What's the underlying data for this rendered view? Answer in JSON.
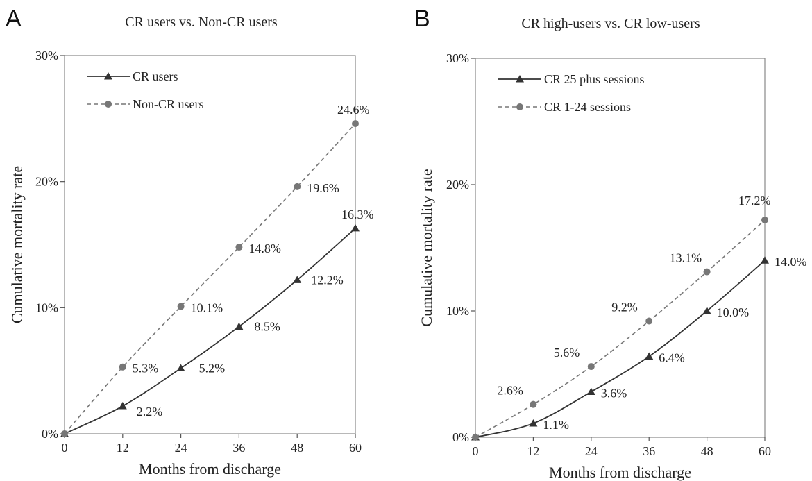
{
  "chart_data": [
    {
      "type": "line",
      "panel": "A",
      "title": "CR users vs. Non-CR users",
      "xlabel": "Months from discharge",
      "ylabel": "Cumulative mortality rate",
      "xlim": [
        0,
        60
      ],
      "ylim": [
        0,
        30
      ],
      "x_ticks": [
        "0",
        "12",
        "24",
        "36",
        "48",
        "60"
      ],
      "y_ticks": [
        "0%",
        "10%",
        "20%",
        "30%"
      ],
      "legend_position": "top-left",
      "grid": false,
      "x": [
        0,
        12,
        24,
        36,
        48,
        60
      ],
      "series": [
        {
          "name": "CR users",
          "style": "solid",
          "marker": "triangle",
          "color": "#333333",
          "values": [
            0,
            2.2,
            5.2,
            8.5,
            12.2,
            16.3
          ],
          "labels": [
            "",
            "2.2%",
            "5.2%",
            "8.5%",
            "12.2%",
            "16.3%"
          ]
        },
        {
          "name": "Non-CR users",
          "style": "dashed",
          "marker": "circle",
          "color": "#777777",
          "values": [
            0,
            5.3,
            10.1,
            14.8,
            19.6,
            24.6
          ],
          "labels": [
            "",
            "5.3%",
            "10.1%",
            "14.8%",
            "19.6%",
            "24.6%"
          ]
        }
      ]
    },
    {
      "type": "line",
      "panel": "B",
      "title": "CR high-users vs. CR low-users",
      "xlabel": "Months from discharge",
      "ylabel": "Cumulative mortality rate",
      "xlim": [
        0,
        60
      ],
      "ylim": [
        0,
        30
      ],
      "x_ticks": [
        "0",
        "12",
        "24",
        "36",
        "48",
        "60"
      ],
      "y_ticks": [
        "0%",
        "10%",
        "20%",
        "30%"
      ],
      "legend_position": "top-left",
      "grid": false,
      "x": [
        0,
        12,
        24,
        36,
        48,
        60
      ],
      "series": [
        {
          "name": "CR 25 plus sessions",
          "style": "solid",
          "marker": "triangle",
          "color": "#333333",
          "values": [
            0,
            1.1,
            3.6,
            6.4,
            10.0,
            14.0
          ],
          "labels": [
            "",
            "1.1%",
            "3.6%",
            "6.4%",
            "10.0%",
            "14.0%"
          ]
        },
        {
          "name": "CR 1-24 sessions",
          "style": "dashed",
          "marker": "circle",
          "color": "#777777",
          "values": [
            0,
            2.6,
            5.6,
            9.2,
            13.1,
            17.2
          ],
          "labels": [
            "",
            "2.6%",
            "5.6%",
            "9.2%",
            "13.1%",
            "17.2%"
          ]
        }
      ]
    }
  ]
}
